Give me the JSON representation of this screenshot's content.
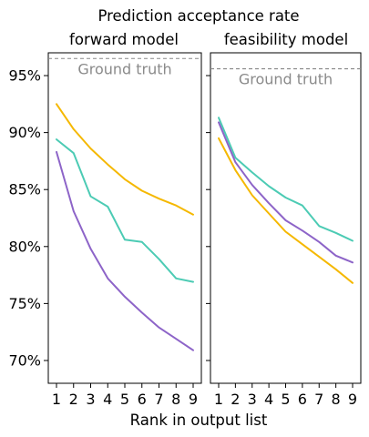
{
  "figure": {
    "title": "Prediction acceptance rate",
    "xlabel": "Rank in output list"
  },
  "chart_data": [
    {
      "type": "line",
      "title": "forward model",
      "x": [
        1,
        2,
        3,
        4,
        5,
        6,
        7,
        8,
        9
      ],
      "ylim": [
        68,
        97
      ],
      "yticks": [
        70,
        75,
        80,
        85,
        90,
        95
      ],
      "ytick_labels": [
        "70%",
        "75%",
        "80%",
        "85%",
        "90%",
        "95%"
      ],
      "grid": false,
      "reference_line": {
        "label": "Ground truth",
        "value": 96.5,
        "color": "#888888",
        "style": "dashed"
      },
      "series": [
        {
          "color": "#F5B800",
          "values": [
            92.5,
            90.3,
            88.6,
            87.2,
            85.9,
            84.9,
            84.2,
            83.6,
            82.8
          ]
        },
        {
          "color": "#4CCBB4",
          "values": [
            89.4,
            88.2,
            84.4,
            83.5,
            80.6,
            80.4,
            78.9,
            77.2,
            76.9
          ]
        },
        {
          "color": "#8D64C8",
          "values": [
            88.3,
            83.1,
            79.8,
            77.2,
            75.6,
            74.2,
            72.9,
            71.9,
            70.9
          ]
        }
      ]
    },
    {
      "type": "line",
      "title": "feasibility model",
      "x": [
        1,
        2,
        3,
        4,
        5,
        6,
        7,
        8,
        9
      ],
      "ylim": [
        68,
        97
      ],
      "grid": false,
      "reference_line": {
        "label": "Ground truth",
        "value": 95.6,
        "color": "#888888",
        "style": "dashed"
      },
      "series": [
        {
          "color": "#F5B800",
          "values": [
            89.5,
            86.7,
            84.5,
            82.9,
            81.3,
            80.2,
            79.1,
            78.0,
            76.8
          ]
        },
        {
          "color": "#4CCBB4",
          "values": [
            91.3,
            87.8,
            86.5,
            85.3,
            84.3,
            83.6,
            81.8,
            81.2,
            80.5
          ]
        },
        {
          "color": "#8D64C8",
          "values": [
            90.9,
            87.4,
            85.4,
            83.8,
            82.3,
            81.4,
            80.4,
            79.2,
            78.6
          ]
        }
      ]
    }
  ]
}
